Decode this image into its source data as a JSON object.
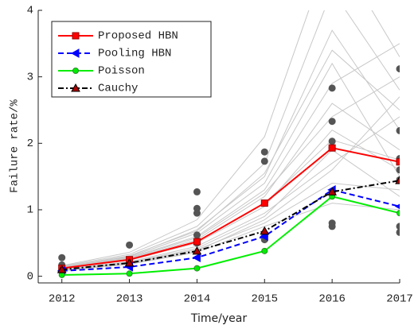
{
  "chart_data": {
    "type": "line",
    "x_label": "Time/year",
    "y_label": "Failure rate/%",
    "xlim": [
      2011.65,
      2017
    ],
    "ylim": [
      -0.1,
      4
    ],
    "xticks": [
      2012,
      2013,
      2014,
      2015,
      2016,
      2017
    ],
    "yticks": [
      0,
      1,
      2,
      3,
      4
    ],
    "x": [
      2012,
      2013,
      2014,
      2015,
      2016,
      2017
    ],
    "sample_color": "#c8c8c8",
    "samples": [
      [
        0.12,
        0.26,
        0.55,
        1.2,
        2.6,
        1.9
      ],
      [
        0.1,
        0.22,
        0.45,
        0.95,
        1.7,
        2.4
      ],
      [
        0.14,
        0.3,
        0.7,
        1.5,
        3.7,
        2.2
      ],
      [
        0.09,
        0.2,
        0.4,
        0.8,
        1.4,
        1.3
      ],
      [
        0.13,
        0.28,
        0.6,
        1.3,
        2.9,
        3.5
      ],
      [
        0.11,
        0.24,
        0.5,
        1.05,
        2.2,
        1.6
      ],
      [
        0.15,
        0.33,
        0.75,
        1.7,
        4.3,
        2.8
      ],
      [
        0.1,
        0.21,
        0.42,
        0.9,
        1.9,
        1.2
      ],
      [
        0.12,
        0.27,
        0.58,
        1.25,
        2.4,
        3.0
      ],
      [
        0.08,
        0.18,
        0.36,
        0.75,
        1.1,
        1.0
      ],
      [
        0.16,
        0.36,
        0.85,
        2.1,
        5.0,
        3.3
      ],
      [
        0.11,
        0.25,
        0.52,
        1.1,
        2.05,
        1.75
      ],
      [
        0.13,
        0.29,
        0.65,
        1.4,
        3.2,
        1.5
      ],
      [
        0.09,
        0.19,
        0.38,
        0.85,
        1.6,
        2.7
      ],
      [
        0.14,
        0.31,
        0.68,
        1.55,
        3.4,
        2.5
      ]
    ],
    "observed": {
      "color": "#555555",
      "x": [
        2012,
        2012,
        2012,
        2013,
        2013,
        2014,
        2014,
        2014,
        2014,
        2014,
        2015,
        2015,
        2015,
        2015,
        2016,
        2016,
        2016,
        2016,
        2016,
        2016,
        2017,
        2017,
        2017,
        2017,
        2017,
        2017,
        2017
      ],
      "y": [
        0.28,
        0.17,
        0.1,
        0.47,
        0.22,
        1.27,
        1.02,
        0.95,
        0.62,
        0.5,
        1.87,
        1.73,
        0.6,
        0.55,
        2.83,
        2.33,
        2.03,
        1.93,
        0.8,
        0.75,
        3.12,
        2.19,
        1.77,
        1.6,
        1.45,
        0.75,
        0.66
      ]
    },
    "series": [
      {
        "name": "Proposed HBN",
        "color": "#ff0000",
        "dash": "solid",
        "marker": "square",
        "values": [
          0.12,
          0.25,
          0.52,
          1.1,
          1.93,
          1.72
        ]
      },
      {
        "name": "Pooling HBN",
        "color": "#0000ff",
        "dash": "dashed",
        "marker": "triangle-left",
        "values": [
          0.08,
          0.14,
          0.28,
          0.6,
          1.3,
          1.05
        ]
      },
      {
        "name": "Poisson",
        "color": "#00ee00",
        "dash": "solid",
        "marker": "circle",
        "values": [
          0.02,
          0.04,
          0.12,
          0.38,
          1.2,
          0.95
        ]
      },
      {
        "name": "Cauchy",
        "color": "#000000",
        "dash": "dashdot",
        "marker": "triangle-up",
        "values": [
          0.1,
          0.2,
          0.38,
          0.68,
          1.27,
          1.44
        ]
      }
    ],
    "legend": "upper left"
  }
}
